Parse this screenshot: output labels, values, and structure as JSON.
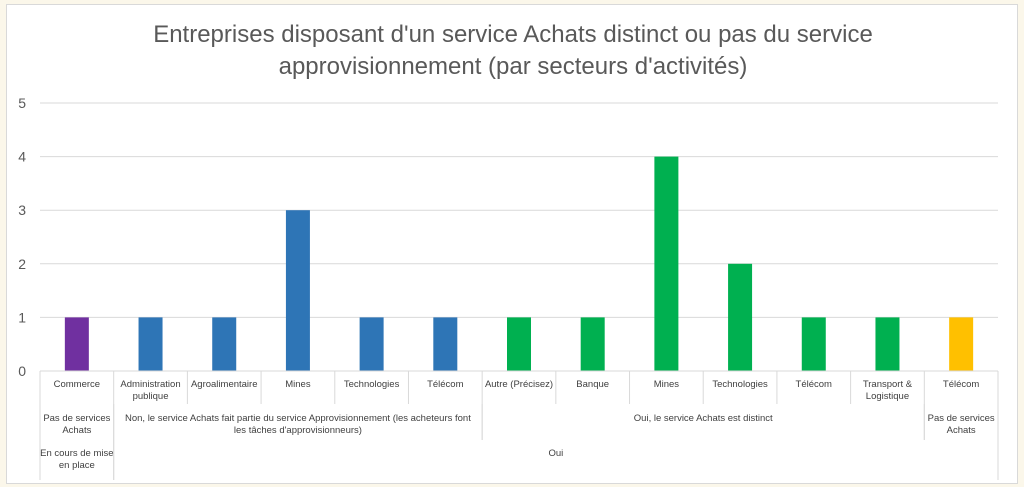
{
  "chart_data": {
    "type": "bar",
    "title_lines": [
      "Entreprises disposant d'un service Achats distinct ou pas du service",
      "approvisionnement (par secteurs d'activités)"
    ],
    "ylim": [
      0,
      5
    ],
    "yticks": [
      "0",
      "1",
      "2",
      "3",
      "4",
      "5"
    ],
    "grid": true,
    "legend": "none",
    "categories": [
      [
        "Commerce"
      ],
      [
        "Administration",
        "publique"
      ],
      [
        "Agroalimentaire"
      ],
      [
        "Mines"
      ],
      [
        "Technologies"
      ],
      [
        "Télécom"
      ],
      [
        "Autre (Précisez)"
      ],
      [
        "Banque"
      ],
      [
        "Mines"
      ],
      [
        "Technologies"
      ],
      [
        "Télécom"
      ],
      [
        "Transport &",
        "Logistique"
      ],
      [
        "Télécom"
      ]
    ],
    "values": [
      1,
      1,
      1,
      3,
      1,
      1,
      1,
      1,
      4,
      2,
      1,
      1,
      1
    ],
    "bar_colors": [
      "#7030a0",
      "#2e75b6",
      "#2e75b6",
      "#2e75b6",
      "#2e75b6",
      "#2e75b6",
      "#00b050",
      "#00b050",
      "#00b050",
      "#00b050",
      "#00b050",
      "#00b050",
      "#ffc000"
    ],
    "group_level_1": [
      {
        "lines": [
          "Pas de services",
          "Achats"
        ],
        "start": 0,
        "end": 0
      },
      {
        "lines": [
          "Non, le service Achats fait partie du service Approvisionnement (les acheteurs font",
          "les tâches d'approvisionneurs)"
        ],
        "start": 1,
        "end": 5
      },
      {
        "lines": [
          "Oui, le service Achats est distinct"
        ],
        "start": 6,
        "end": 11
      },
      {
        "lines": [
          "Pas de services",
          "Achats"
        ],
        "start": 12,
        "end": 12
      }
    ],
    "group_level_2": [
      {
        "lines": [
          "En cours de mise",
          "en place"
        ],
        "start": 0,
        "end": 0
      },
      {
        "lines": [
          "Oui"
        ],
        "start": 1,
        "end": 12
      }
    ]
  }
}
